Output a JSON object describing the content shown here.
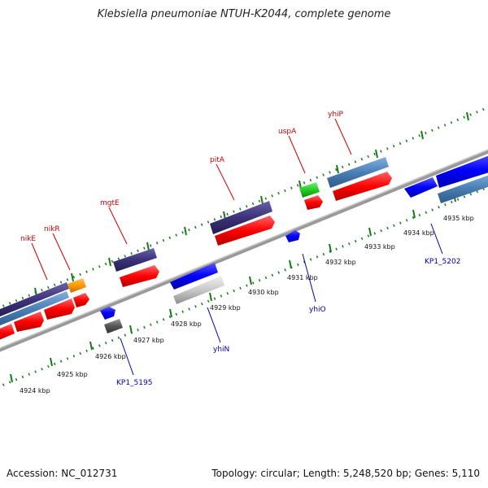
{
  "title": "Klebsiella pneumoniae NTUH-K2044, complete genome",
  "accession": "Accession: NC_012731",
  "topology": "Topology: circular; Length: 5,248,520 bp; Genes: 5,110",
  "scale_labels": [
    "4924 kbp",
    "4925 kbp",
    "4926 kbp",
    "4927 kbp",
    "4928 kbp",
    "4929 kbp",
    "4930 kbp",
    "4931 kbp",
    "4932 kbp",
    "4933 kbp",
    "4934 kbp",
    "4935 kbp"
  ],
  "gene_labels_top": [
    "nikE",
    "nikR",
    "mgtE",
    "pitA",
    "uspA",
    "yhiP"
  ],
  "gene_labels_bottom": [
    "KP1_5195",
    "yhiN",
    "yhiO",
    "KP1_5202"
  ],
  "colors": {
    "red": "#ff0000",
    "purple": "#3c3278",
    "steel_blue": "#4a7fb5",
    "blue": "#0000ff",
    "orange": "#ff9900",
    "green": "#22cc22",
    "silver": "#c8c8c8",
    "dark_gray": "#555555",
    "tick_green": "#1a7a1a",
    "backbone": "#888888"
  }
}
